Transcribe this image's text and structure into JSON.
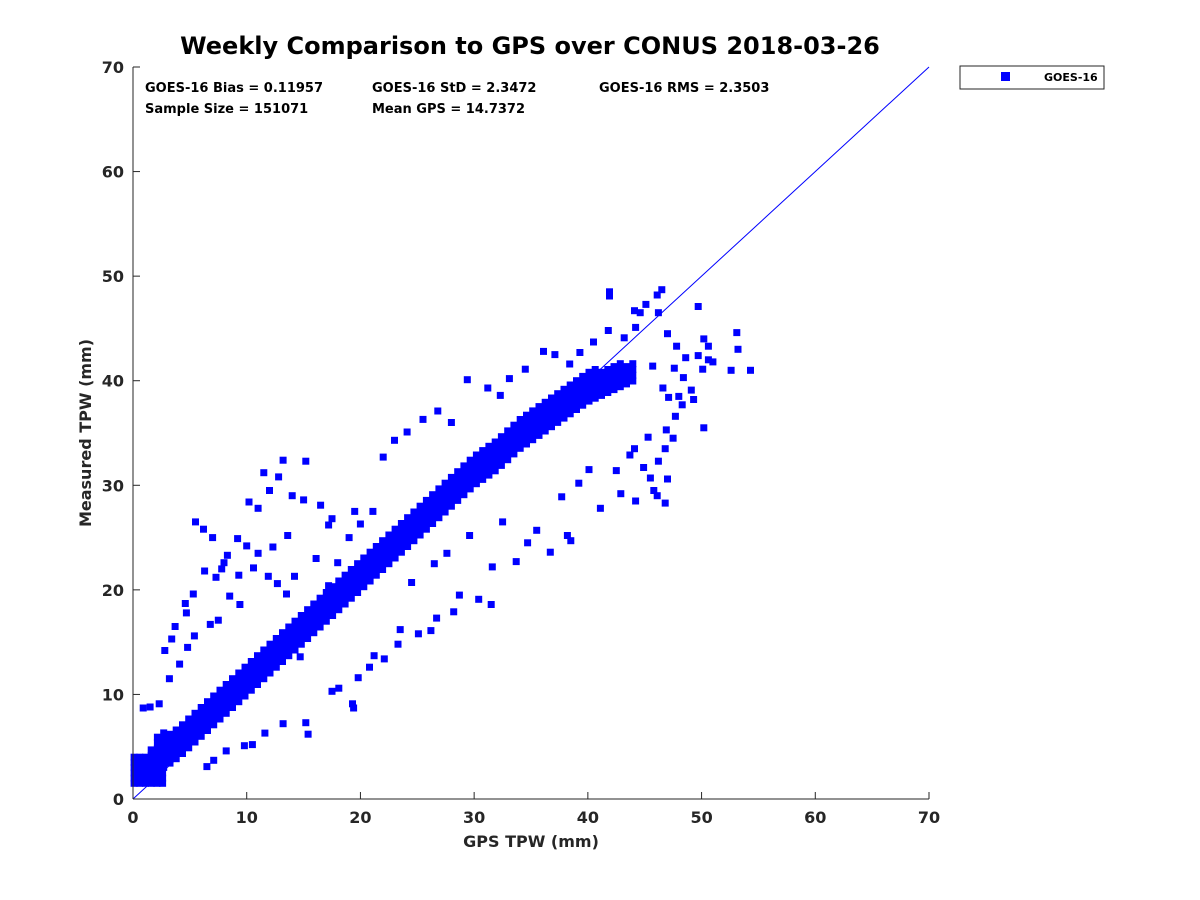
{
  "chart_data": {
    "type": "scatter",
    "title": "Weekly Comparison to GPS over CONUS 2018-03-26",
    "xlabel": "GPS TPW (mm)",
    "ylabel": "Measured TPW (mm)",
    "xlim": [
      0,
      70
    ],
    "ylim": [
      0,
      70
    ],
    "xticks": [
      0,
      10,
      20,
      30,
      40,
      50,
      60,
      70
    ],
    "yticks": [
      0,
      10,
      20,
      30,
      40,
      50,
      60,
      70
    ],
    "grid": false,
    "legend_position": "outside-top-right",
    "series": [
      {
        "name": "GOES-16",
        "color": "#0000ff",
        "marker": "square",
        "n_points": 151071,
        "core_band": [
          [
            0.5,
            2.5,
            3
          ],
          [
            2,
            2.5,
            6
          ],
          [
            4,
            4,
            7
          ],
          [
            6,
            6,
            9
          ],
          [
            8,
            8,
            11
          ],
          [
            10,
            10,
            13
          ],
          [
            12,
            12,
            15
          ],
          [
            14,
            14,
            17
          ],
          [
            16,
            16,
            19
          ],
          [
            18,
            18,
            21
          ],
          [
            20,
            20,
            23
          ],
          [
            22,
            22,
            25
          ],
          [
            24,
            24,
            27
          ],
          [
            26,
            26,
            29
          ],
          [
            28,
            28,
            31
          ],
          [
            30,
            30,
            33
          ],
          [
            32,
            31.5,
            34.5
          ],
          [
            34,
            33.5,
            36.5
          ],
          [
            36,
            35,
            38
          ],
          [
            38,
            36.5,
            39.5
          ],
          [
            40,
            38,
            41
          ],
          [
            42,
            39,
            41.5
          ],
          [
            44,
            40,
            42
          ]
        ],
        "outliers": [
          [
            5.5,
            26.5
          ],
          [
            6.2,
            25.8
          ],
          [
            7,
            25
          ],
          [
            8,
            22.6
          ],
          [
            9.2,
            24.9
          ],
          [
            10,
            24.2
          ],
          [
            10.2,
            28.4
          ],
          [
            11,
            27.8
          ],
          [
            11.5,
            31.2
          ],
          [
            12,
            29.5
          ],
          [
            12.8,
            30.8
          ],
          [
            13.2,
            32.4
          ],
          [
            14,
            29
          ],
          [
            15,
            28.6
          ],
          [
            15.2,
            32.3
          ],
          [
            16.5,
            28.1
          ],
          [
            17.2,
            26.2
          ],
          [
            19,
            25
          ],
          [
            19.5,
            27.5
          ],
          [
            4.8,
            14.5
          ],
          [
            5.4,
            15.6
          ],
          [
            6.8,
            16.7
          ],
          [
            7.5,
            17.1
          ],
          [
            8.5,
            19.4
          ],
          [
            7.3,
            21.2
          ],
          [
            9.4,
            18.6
          ],
          [
            4.6,
            18.7
          ],
          [
            11,
            23.5
          ],
          [
            12.3,
            24.1
          ],
          [
            13.6,
            25.2
          ],
          [
            14.2,
            21.3
          ],
          [
            16.1,
            23
          ],
          [
            18,
            22.6
          ],
          [
            17.5,
            26.8
          ],
          [
            20,
            26.3
          ],
          [
            21.1,
            27.5
          ],
          [
            22,
            32.7
          ],
          [
            23,
            34.3
          ],
          [
            24.1,
            35.1
          ],
          [
            25.5,
            36.3
          ],
          [
            26.8,
            37.1
          ],
          [
            28,
            36
          ],
          [
            29.4,
            40.1
          ],
          [
            31.2,
            39.3
          ],
          [
            32.3,
            38.6
          ],
          [
            33.1,
            40.2
          ],
          [
            34.5,
            41.1
          ],
          [
            36.1,
            42.8
          ],
          [
            37.1,
            42.5
          ],
          [
            38.4,
            41.6
          ],
          [
            39.3,
            42.7
          ],
          [
            40.5,
            43.7
          ],
          [
            41.8,
            44.8
          ],
          [
            43.2,
            44.1
          ],
          [
            44.2,
            45.1
          ],
          [
            44.6,
            46.5
          ],
          [
            45.1,
            47.3
          ],
          [
            46.2,
            46.5
          ],
          [
            46.1,
            48.2
          ],
          [
            46.5,
            48.7
          ],
          [
            41.9,
            48.5
          ],
          [
            41.9,
            48.1
          ],
          [
            44.1,
            46.7
          ],
          [
            49.7,
            47.1
          ],
          [
            47,
            44.5
          ],
          [
            47.8,
            43.3
          ],
          [
            48.6,
            42.2
          ],
          [
            49.7,
            42.4
          ],
          [
            50.1,
            41.1
          ],
          [
            50.6,
            43.3
          ],
          [
            50.2,
            44
          ],
          [
            50.6,
            42
          ],
          [
            51,
            41.8
          ],
          [
            53.1,
            44.6
          ],
          [
            53.2,
            43
          ],
          [
            52.6,
            41
          ],
          [
            54.3,
            41
          ],
          [
            49.3,
            38.2
          ],
          [
            48,
            38.5
          ],
          [
            50.2,
            35.5
          ],
          [
            47.5,
            34.5
          ],
          [
            46.8,
            33.5
          ],
          [
            46.2,
            32.3
          ],
          [
            47,
            30.6
          ],
          [
            45.8,
            29.5
          ],
          [
            46.1,
            29
          ],
          [
            46.8,
            28.3
          ],
          [
            44.2,
            28.5
          ],
          [
            42.9,
            29.2
          ],
          [
            41.1,
            27.8
          ],
          [
            38.2,
            25.2
          ],
          [
            38.5,
            24.7
          ],
          [
            36.7,
            23.6
          ],
          [
            34.7,
            24.5
          ],
          [
            33.7,
            22.7
          ],
          [
            31.6,
            22.2
          ],
          [
            31.5,
            18.6
          ],
          [
            30.4,
            19.1
          ],
          [
            28.2,
            17.9
          ],
          [
            28.7,
            19.5
          ],
          [
            26.7,
            17.3
          ],
          [
            26.2,
            16.1
          ],
          [
            25.1,
            15.8
          ],
          [
            23.3,
            14.8
          ],
          [
            22.1,
            13.4
          ],
          [
            20.8,
            12.6
          ],
          [
            19.8,
            11.6
          ],
          [
            18.1,
            10.6
          ],
          [
            17.5,
            10.3
          ],
          [
            19.3,
            9.1
          ],
          [
            19.4,
            8.7
          ],
          [
            15.2,
            7.3
          ],
          [
            15.4,
            6.2
          ],
          [
            13.2,
            7.2
          ],
          [
            11.6,
            6.3
          ],
          [
            10.5,
            5.2
          ],
          [
            9.8,
            5.1
          ],
          [
            8.2,
            4.6
          ],
          [
            7.1,
            3.7
          ],
          [
            6.5,
            3.1
          ],
          [
            0.9,
            8.7
          ],
          [
            1.5,
            8.8
          ],
          [
            2.3,
            9.1
          ],
          [
            3.2,
            11.5
          ],
          [
            4.1,
            12.9
          ],
          [
            3.4,
            15.3
          ],
          [
            2.8,
            14.2
          ],
          [
            3.7,
            16.5
          ],
          [
            4.7,
            17.8
          ],
          [
            5.3,
            19.6
          ],
          [
            6.3,
            21.8
          ],
          [
            7.8,
            22
          ],
          [
            8.3,
            23.3
          ],
          [
            9.3,
            21.4
          ],
          [
            10.6,
            22.1
          ],
          [
            11.9,
            21.3
          ],
          [
            12.7,
            20.6
          ],
          [
            13.5,
            19.6
          ],
          [
            16.9,
            18.5
          ],
          [
            17.2,
            20.4
          ],
          [
            15.8,
            16.1
          ],
          [
            14.7,
            13.6
          ],
          [
            21.2,
            13.7
          ],
          [
            23.5,
            16.2
          ],
          [
            24.5,
            20.7
          ],
          [
            26.5,
            22.5
          ],
          [
            27.6,
            23.5
          ],
          [
            29.6,
            25.2
          ],
          [
            32.5,
            26.5
          ],
          [
            35.5,
            25.7
          ],
          [
            37.7,
            28.9
          ],
          [
            39.2,
            30.2
          ],
          [
            40.1,
            31.5
          ],
          [
            42.5,
            31.4
          ],
          [
            43.7,
            32.9
          ],
          [
            44.9,
            31.7
          ],
          [
            45.5,
            30.7
          ],
          [
            44.1,
            33.5
          ],
          [
            45.3,
            34.6
          ],
          [
            46.9,
            35.3
          ],
          [
            47.7,
            36.6
          ],
          [
            48.3,
            37.7
          ],
          [
            49.1,
            39.1
          ],
          [
            48.4,
            40.3
          ],
          [
            47.6,
            41.2
          ],
          [
            45.7,
            41.4
          ],
          [
            46.6,
            39.3
          ],
          [
            47.1,
            38.4
          ]
        ]
      }
    ],
    "reference_line": {
      "label": "1:1",
      "from": [
        0,
        0
      ],
      "to": [
        70,
        70
      ]
    },
    "stats": {
      "bias": "GOES-16 Bias = 0.11957",
      "std": "GOES-16 StD = 2.3472",
      "rms": "GOES-16 RMS = 2.3503",
      "sample_size": "Sample Size = 151071",
      "mean_gps": "Mean GPS = 14.7372"
    },
    "legend": [
      {
        "label": "GOES-16",
        "color": "#0000ff",
        "marker": "square"
      }
    ]
  }
}
